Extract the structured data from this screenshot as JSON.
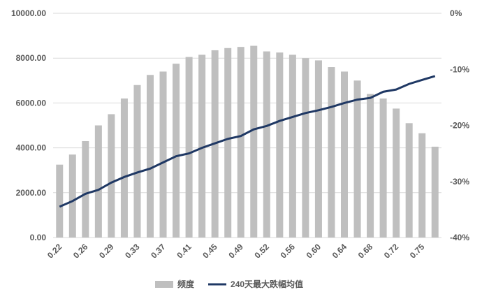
{
  "chart_data": {
    "type": "bar-line",
    "categories": [
      "0.22",
      null,
      "0.26",
      null,
      "0.29",
      null,
      "0.33",
      null,
      "0.37",
      null,
      "0.41",
      null,
      "0.45",
      null,
      "0.49",
      null,
      "0.52",
      null,
      "0.56",
      null,
      "0.60",
      null,
      "0.64",
      null,
      "0.68",
      null,
      "0.72",
      null,
      "0.75",
      null
    ],
    "series": [
      {
        "name": "频度",
        "type": "bar",
        "color": "#bfbfbf",
        "axis": "y",
        "values": [
          3250,
          3700,
          4300,
          5000,
          5500,
          6200,
          6800,
          7250,
          7400,
          7750,
          8050,
          8150,
          8350,
          8450,
          8500,
          8550,
          8300,
          8250,
          8150,
          8000,
          7900,
          7600,
          7400,
          7000,
          6400,
          6200,
          5750,
          5100,
          4650,
          4050
        ]
      },
      {
        "name": "240天最大跌幅均值",
        "type": "line",
        "color": "#1f3864",
        "axis": "y2",
        "values": [
          -34.5,
          -33.5,
          -32.2,
          -31.5,
          -30.2,
          -29.2,
          -28.4,
          -27.7,
          -26.6,
          -25.5,
          -25,
          -24,
          -23.2,
          -22.4,
          -21.9,
          -20.7,
          -20.1,
          -19.2,
          -18.5,
          -17.8,
          -17.3,
          -16.7,
          -16,
          -15.4,
          -15.1,
          -14,
          -13.6,
          -12.6,
          -11.9,
          -11.2
        ]
      }
    ],
    "ylim": [
      0,
      10000
    ],
    "yticks": [
      {
        "value": 0,
        "label": "0.00"
      },
      {
        "value": 2000,
        "label": "2000.00"
      },
      {
        "value": 4000,
        "label": "4000.00"
      },
      {
        "value": 6000,
        "label": "6000.00"
      },
      {
        "value": 8000,
        "label": "8000.00"
      },
      {
        "value": 10000,
        "label": "10000.00"
      }
    ],
    "y2lim": [
      -40,
      0
    ],
    "y2ticks": [
      {
        "value": -40,
        "label": "-40%"
      },
      {
        "value": -30,
        "label": "-30%"
      },
      {
        "value": -20,
        "label": "-20%"
      },
      {
        "value": -10,
        "label": "-10%"
      },
      {
        "value": 0,
        "label": "0%"
      }
    ],
    "grid": true,
    "legend": "bottom"
  }
}
